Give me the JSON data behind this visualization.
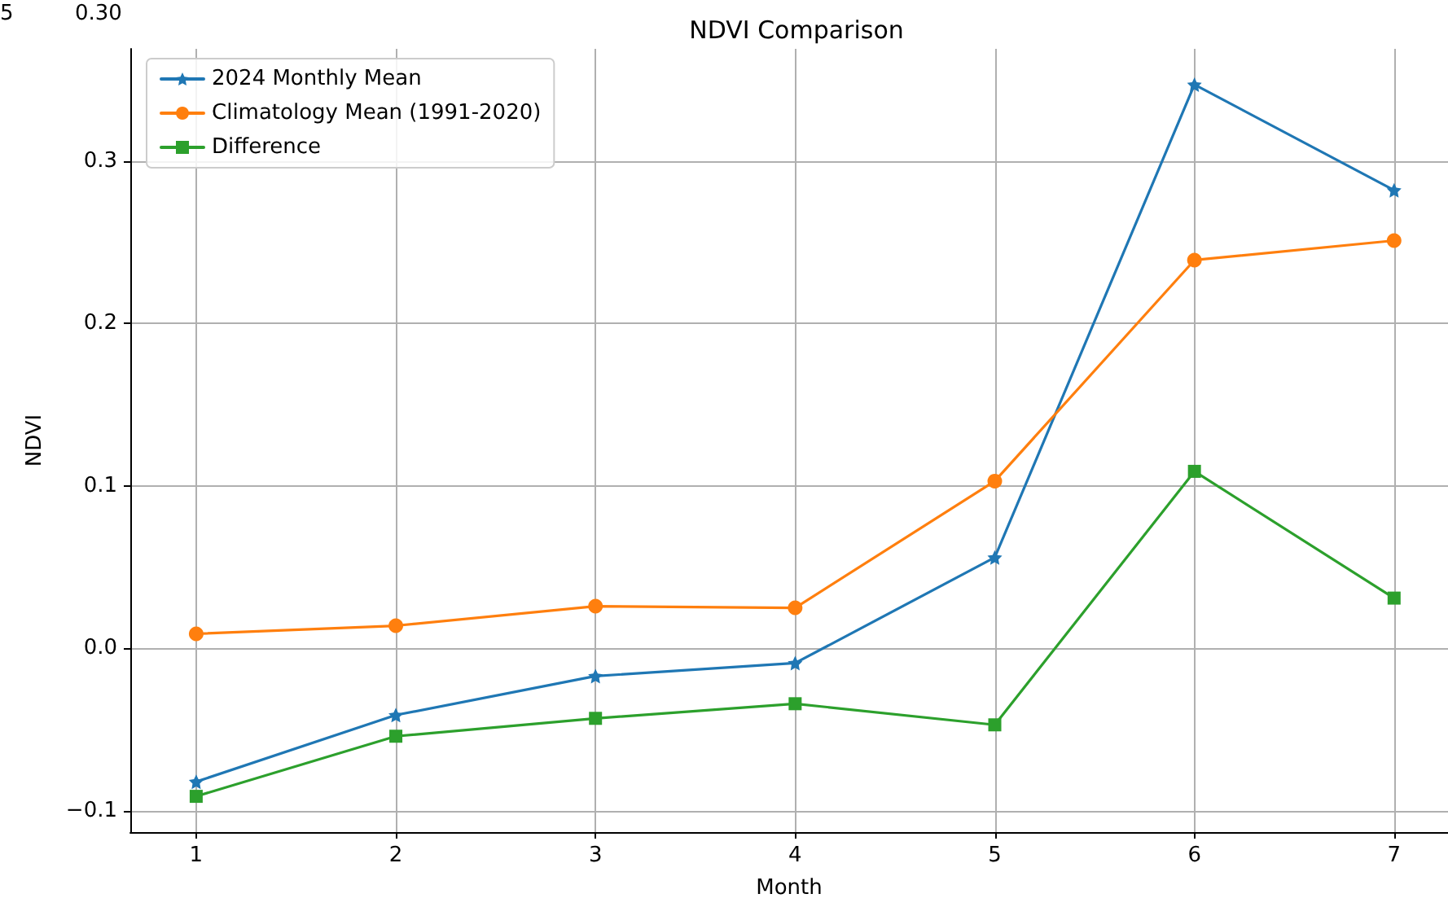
{
  "chart_data": {
    "type": "line",
    "title": "NDVI Comparison",
    "xlabel": "Month",
    "ylabel": "NDVI",
    "x": [
      1,
      2,
      3,
      4,
      5,
      6,
      7
    ],
    "series": [
      {
        "name": "2024 Monthly Mean",
        "color": "#1f77b4",
        "marker": "star",
        "values": [
          -0.082,
          -0.041,
          -0.017,
          -0.009,
          0.056,
          0.347,
          0.282
        ]
      },
      {
        "name": "Climatology Mean (1991-2020)",
        "color": "#ff7f0e",
        "marker": "circle",
        "values": [
          0.009,
          0.014,
          0.026,
          0.025,
          0.103,
          0.239,
          0.251
        ]
      },
      {
        "name": "Difference",
        "color": "#2ca02c",
        "marker": "square",
        "values": [
          -0.091,
          -0.054,
          -0.043,
          -0.034,
          -0.047,
          0.109,
          0.031
        ]
      }
    ],
    "xlim": [
      0.67,
      7.27
    ],
    "xticks": [
      1,
      2,
      3,
      4,
      5,
      6,
      7
    ],
    "ylim": [
      -0.113,
      0.369
    ],
    "yticks": [
      {
        "value": -0.1,
        "label": "−0.1"
      },
      {
        "value": 0,
        "label": "0.0"
      },
      {
        "value": 0.1,
        "label": "0.1"
      },
      {
        "value": 0.2,
        "label": "0.2"
      },
      {
        "value": 0.3,
        "label": "0.3"
      }
    ],
    "annotations": [
      "5",
      "0.30"
    ],
    "grid": true,
    "legend": "top left",
    "line_style": "solid"
  }
}
